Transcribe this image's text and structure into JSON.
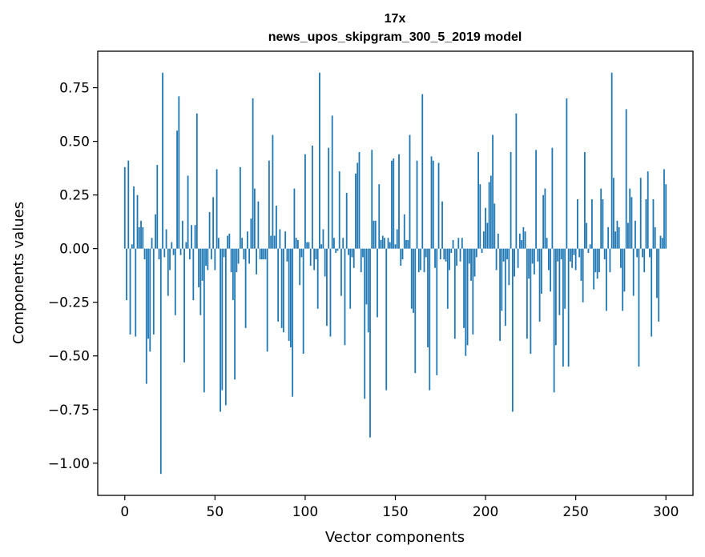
{
  "chart_data": {
    "type": "bar",
    "title_line1": "17x",
    "title_line2": "news_upos_skipgram_300_5_2019 model",
    "xlabel": "Vector components",
    "ylabel": "Components values",
    "xlim": [
      -15,
      315
    ],
    "ylim": [
      -1.15,
      0.92
    ],
    "x_ticks": [
      0,
      50,
      100,
      150,
      200,
      250,
      300
    ],
    "x_tick_labels": [
      "0",
      "50",
      "100",
      "150",
      "200",
      "250",
      "300"
    ],
    "y_ticks": [
      0.75,
      0.5,
      0.25,
      0.0,
      -0.25,
      -0.5,
      -0.75,
      -1.0
    ],
    "y_tick_labels": [
      "0.75",
      "0.50",
      "0.25",
      "0.00",
      "−0.25",
      "−0.50",
      "−0.75",
      "−1.00"
    ],
    "bar_color": "#1f77b4",
    "values": [
      0.38,
      -0.24,
      0.41,
      -0.4,
      0.02,
      0.29,
      -0.41,
      0.25,
      0.1,
      0.13,
      0.1,
      -0.05,
      -0.63,
      -0.42,
      -0.48,
      0.05,
      -0.4,
      0.16,
      0.39,
      -0.05,
      -1.05,
      0.82,
      -0.04,
      0.09,
      -0.22,
      -0.1,
      0.03,
      -0.03,
      -0.31,
      0.55,
      0.71,
      -0.03,
      0.13,
      -0.53,
      0.03,
      0.34,
      -0.05,
      0.11,
      -0.24,
      0.11,
      0.63,
      -0.18,
      -0.31,
      -0.15,
      -0.67,
      -0.08,
      -0.1,
      0.17,
      -0.05,
      0.24,
      -0.1,
      0.37,
      0.05,
      -0.76,
      -0.66,
      -0.04,
      -0.73,
      0.06,
      0.07,
      -0.11,
      -0.24,
      -0.61,
      -0.11,
      -0.07,
      0.38,
      0.05,
      -0.05,
      -0.37,
      0.08,
      -0.07,
      0.14,
      0.7,
      0.28,
      -0.12,
      0.22,
      -0.05,
      -0.05,
      -0.05,
      -0.05,
      -0.48,
      0.41,
      0.06,
      0.53,
      0.06,
      0.2,
      -0.34,
      0.09,
      -0.37,
      -0.39,
      0.08,
      -0.06,
      -0.43,
      -0.46,
      -0.69,
      0.28,
      0.05,
      0.04,
      -0.17,
      -0.04,
      -0.49,
      0.44,
      0.03,
      0.03,
      -0.08,
      0.48,
      -0.1,
      -0.05,
      -0.28,
      0.82,
      0.02,
      0.09,
      -0.13,
      -0.36,
      0.47,
      -0.41,
      0.62,
      0.05,
      -0.02,
      -0.01,
      0.36,
      -0.22,
      0.05,
      -0.45,
      0.26,
      -0.03,
      -0.28,
      -0.04,
      -0.09,
      0.35,
      0.4,
      0.45,
      -0.11,
      -0.04,
      -0.7,
      -0.26,
      -0.39,
      -0.88,
      0.46,
      0.13,
      0.13,
      -0.32,
      0.3,
      0.04,
      0.06,
      0.05,
      -0.66,
      0.05,
      0.03,
      0.41,
      0.42,
      0.02,
      0.09,
      0.44,
      -0.08,
      -0.05,
      0.16,
      0.04,
      0.04,
      0.53,
      -0.28,
      -0.3,
      -0.58,
      0.41,
      -0.11,
      -0.1,
      0.72,
      -0.11,
      -0.04,
      -0.46,
      -0.66,
      0.43,
      0.41,
      -0.09,
      -0.59,
      0.4,
      -0.05,
      0.22,
      -0.05,
      -0.06,
      -0.28,
      -0.1,
      -0.02,
      0.04,
      -0.42,
      -0.08,
      0.05,
      -0.06,
      0.05,
      -0.37,
      -0.5,
      -0.45,
      -0.07,
      -0.15,
      -0.4,
      -0.13,
      -0.04,
      0.45,
      0.3,
      -0.02,
      0.08,
      0.19,
      0.12,
      0.31,
      0.34,
      0.53,
      0.21,
      -0.1,
      0.07,
      -0.43,
      -0.29,
      -0.06,
      -0.36,
      -0.05,
      -0.17,
      0.45,
      -0.76,
      -0.13,
      0.63,
      -0.09,
      0.07,
      0.04,
      0.1,
      0.08,
      -0.42,
      -0.14,
      -0.49,
      -0.07,
      -0.12,
      0.46,
      -0.06,
      -0.34,
      -0.21,
      0.25,
      0.28,
      0.05,
      -0.1,
      -0.2,
      0.47,
      -0.67,
      -0.45,
      -0.06,
      -0.31,
      -0.05,
      -0.55,
      -0.28,
      0.7,
      -0.55,
      -0.06,
      -0.09,
      -0.03,
      -0.1,
      0.23,
      -0.04,
      -0.15,
      -0.25,
      0.45,
      0.12,
      -0.02,
      0.02,
      0.23,
      -0.19,
      -0.11,
      -0.14,
      -0.11,
      0.28,
      0.23,
      -0.05,
      -0.29,
      0.1,
      -0.11,
      0.82,
      0.33,
      0.08,
      0.13,
      0.1,
      -0.09,
      -0.29,
      -0.2,
      0.65,
      0.12,
      0.28,
      0.24,
      -0.22,
      0.13,
      -0.04,
      -0.55,
      0.33,
      -0.04,
      -0.11,
      0.23,
      0.36,
      -0.04,
      -0.41,
      0.23,
      0.1,
      -0.23,
      -0.34,
      0.06,
      0.05,
      0.37,
      0.3
    ]
  }
}
